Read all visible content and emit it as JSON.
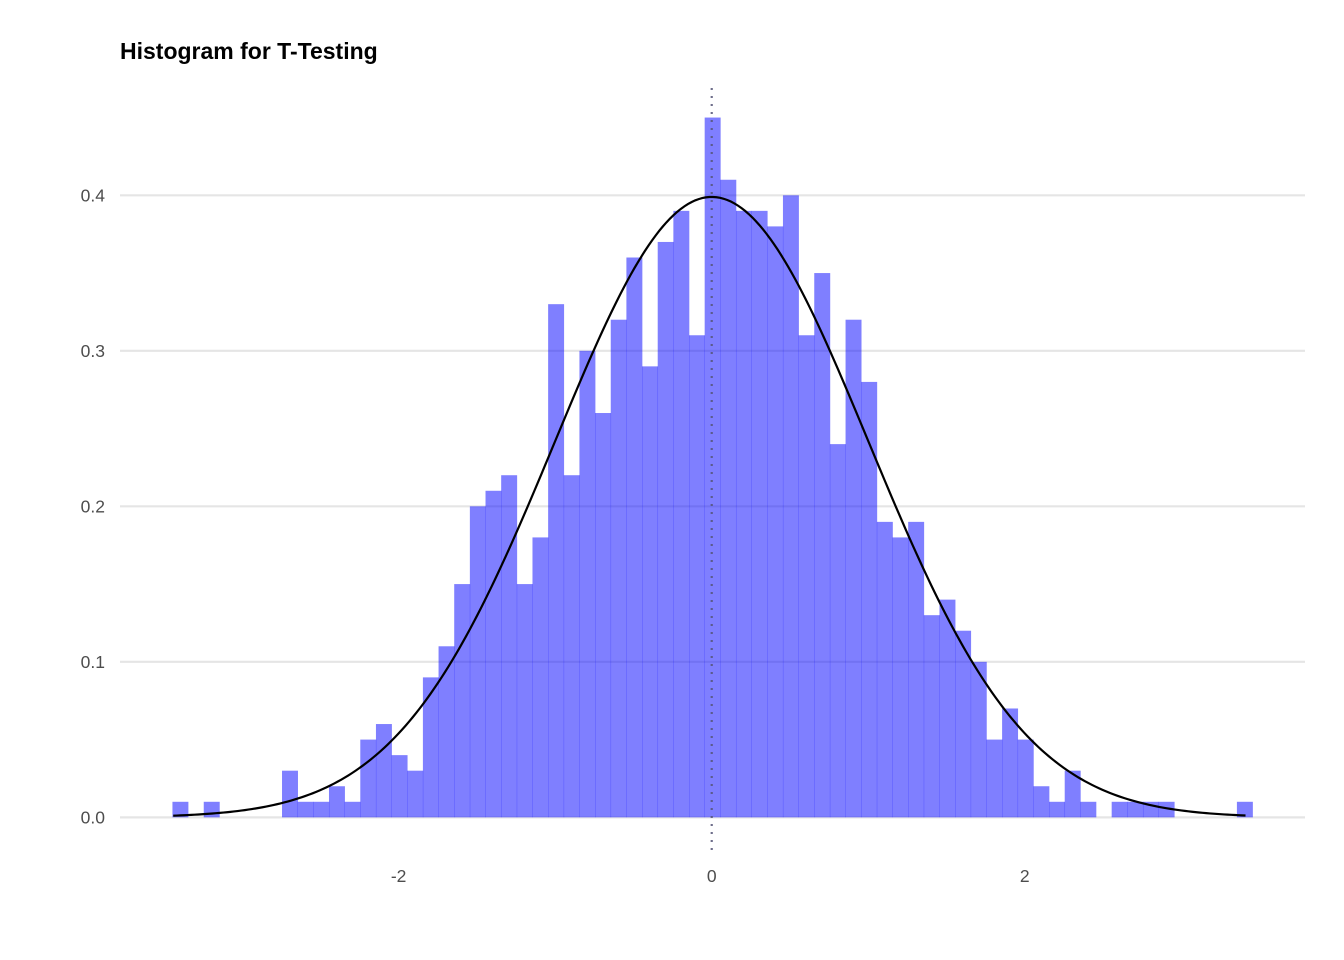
{
  "chart_data": {
    "type": "bar",
    "title": "Histogram for T-Testing",
    "xlabel": "",
    "ylabel": "",
    "bin_width": 0.1,
    "first_bin_start": -3.445,
    "values": [
      0.01,
      0,
      0.01,
      0,
      0,
      0,
      0,
      0.03,
      0.01,
      0.01,
      0.02,
      0.01,
      0.05,
      0.06,
      0.04,
      0.03,
      0.09,
      0.11,
      0.15,
      0.2,
      0.21,
      0.22,
      0.15,
      0.18,
      0.33,
      0.22,
      0.3,
      0.26,
      0.32,
      0.36,
      0.29,
      0.37,
      0.39,
      0.31,
      0.45,
      0.41,
      0.39,
      0.39,
      0.38,
      0.4,
      0.31,
      0.35,
      0.24,
      0.32,
      0.28,
      0.19,
      0.18,
      0.19,
      0.13,
      0.14,
      0.12,
      0.1,
      0.05,
      0.07,
      0.05,
      0.02,
      0.01,
      0.03,
      0.01,
      0,
      0.01,
      0.01,
      0.01,
      0.01,
      0,
      0,
      0,
      0,
      0.01
    ],
    "density_curve": {
      "type": "normal",
      "mean": 0,
      "sd": 1,
      "x_range": [
        -3.44,
        3.41
      ],
      "color": "#000000"
    },
    "vline": {
      "x": 0,
      "style": "dotted",
      "color": "#555577"
    },
    "xlim": [
      -3.78,
      3.79
    ],
    "ylim": [
      -0.021,
      0.469
    ],
    "x_ticks": [
      {
        "value": -2,
        "label": "-2"
      },
      {
        "value": 0,
        "label": "0"
      },
      {
        "value": 2,
        "label": "2"
      }
    ],
    "y_ticks": [
      {
        "value": 0,
        "label": "0.0"
      },
      {
        "value": 0.1,
        "label": "0.1"
      },
      {
        "value": 0.2,
        "label": "0.2"
      },
      {
        "value": 0.3,
        "label": "0.3"
      },
      {
        "value": 0.4,
        "label": "0.4"
      }
    ],
    "grid": "horizontal-major",
    "bar_color": "#0000ff",
    "bar_alpha": 0.5,
    "legend": "none"
  }
}
